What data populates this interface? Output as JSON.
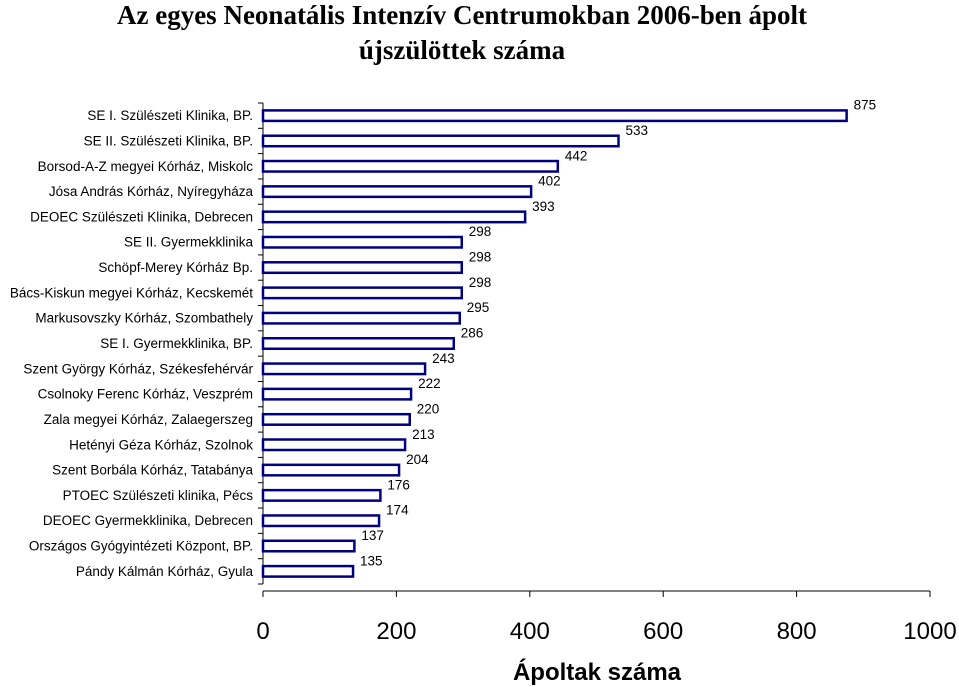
{
  "chart_data": {
    "type": "bar",
    "orientation": "horizontal",
    "title_lines": [
      "Az egyes Neonatális Intenzív Centrumokban 2006-ben ápolt",
      "újszülöttek száma"
    ],
    "xlabel": "Ápoltak száma",
    "ylabel": "",
    "xlim": [
      0,
      1000
    ],
    "xticks": [
      0,
      200,
      400,
      600,
      800,
      1000
    ],
    "grid": false,
    "legend": "none",
    "colors": {
      "bar_fill": "#ffffff",
      "bar_stroke": "#000080"
    },
    "categories": [
      "SE I. Szülészeti Klinika, BP.",
      "SE II. Szülészeti Klinika, BP.",
      "Borsod-A-Z megyei Kórház, Miskolc",
      "Jósa András Kórház, Nyíregyháza",
      "DEOEC Szülészeti Klinika, Debrecen",
      "SE II. Gyermekklinika",
      "Schöpf-Merey Kórház Bp.",
      "Bács-Kiskun megyei Kórház, Kecskemét",
      "Markusovszky Kórház, Szombathely",
      "SE I. Gyermekklinika, BP.",
      "Szent György Kórház, Székesfehérvár",
      "Csolnoky Ferenc Kórház, Veszprém",
      "Zala megyei Kórház, Zalaegerszeg",
      "Hetényi Géza Kórház, Szolnok",
      "Szent Borbála Kórház, Tatabánya",
      "PTOEC Szülészeti klinika, Pécs",
      "DEOEC Gyermekklinika, Debrecen",
      "Országos Gyógyintézeti Központ, BP.",
      "Pándy Kálmán Kórház, Gyula"
    ],
    "values": [
      875,
      533,
      442,
      402,
      393,
      298,
      298,
      298,
      295,
      286,
      243,
      222,
      220,
      213,
      204,
      176,
      174,
      137,
      135
    ],
    "value_labels": [
      "875",
      "533",
      "442",
      "402",
      "393",
      "298",
      "298",
      "298",
      "295",
      "286",
      "243",
      "222",
      "220",
      "213",
      "204",
      "176",
      "174",
      "137",
      "135"
    ]
  }
}
